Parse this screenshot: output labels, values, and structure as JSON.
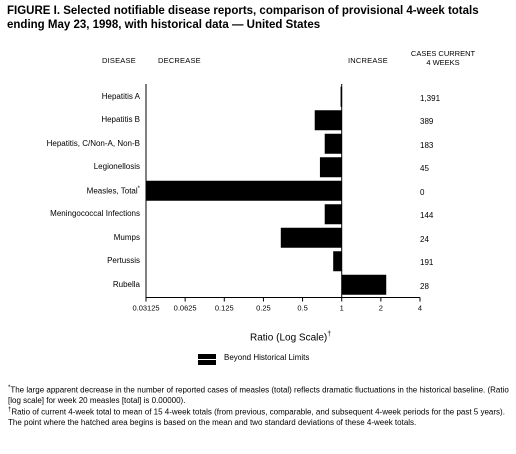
{
  "title": "FIGURE I. Selected notifiable disease reports, comparison of provisional 4-week totals ending May 23, 1998, with historical data — United States",
  "headers": {
    "disease": "DISEASE",
    "decrease": "DECREASE",
    "increase": "INCREASE",
    "cases_line1": "CASES CURRENT",
    "cases_line2": "4 WEEKS"
  },
  "chart_data": {
    "type": "bar",
    "orientation": "horizontal",
    "x_scale": "log",
    "xlabel": "Ratio (Log Scale)",
    "xlabel_mark": "†",
    "xlim": [
      0.03125,
      4
    ],
    "xticks": [
      "0.03125",
      "0.0625",
      "0.125",
      "0.25",
      "0.5",
      "1",
      "2",
      "4"
    ],
    "tick_values": [
      0.03125,
      0.0625,
      0.125,
      0.25,
      0.5,
      1,
      2,
      4
    ],
    "baseline": 1,
    "categories": [
      "Hepatitis A",
      "Hepatitis B",
      "Hepatitis, C/Non-A, Non-B",
      "Legionellosis",
      "Measles, Total",
      "Meningococcal Infections",
      "Mumps",
      "Pertussis",
      "Rubella"
    ],
    "category_marks": [
      "",
      "",
      "",
      "",
      "*",
      "",
      "",
      "",
      ""
    ],
    "values": [
      0.98,
      0.62,
      0.74,
      0.68,
      0.03125,
      0.74,
      0.34,
      0.86,
      2.2
    ],
    "cases_current_4_weeks": [
      "1,391",
      "389",
      "183",
      "45",
      "0",
      "144",
      "24",
      "191",
      "28"
    ],
    "legend": "Beyond Historical Limits"
  },
  "footnotes": [
    {
      "mark": "*",
      "text": "The large apparent decrease in the number of reported cases of measles (total) reflects dramatic fluctuations in the historical baseline. (Ratio [log scale] for week 20 measles [total] is 0.00000)."
    },
    {
      "mark": "†",
      "text": "Ratio of current 4-week total to mean of 15 4-week totals (from previous, comparable, and subsequent 4-week periods for the past 5 years). The point where the hatched area begins is based on the mean and two standard deviations of these 4-week totals."
    }
  ]
}
